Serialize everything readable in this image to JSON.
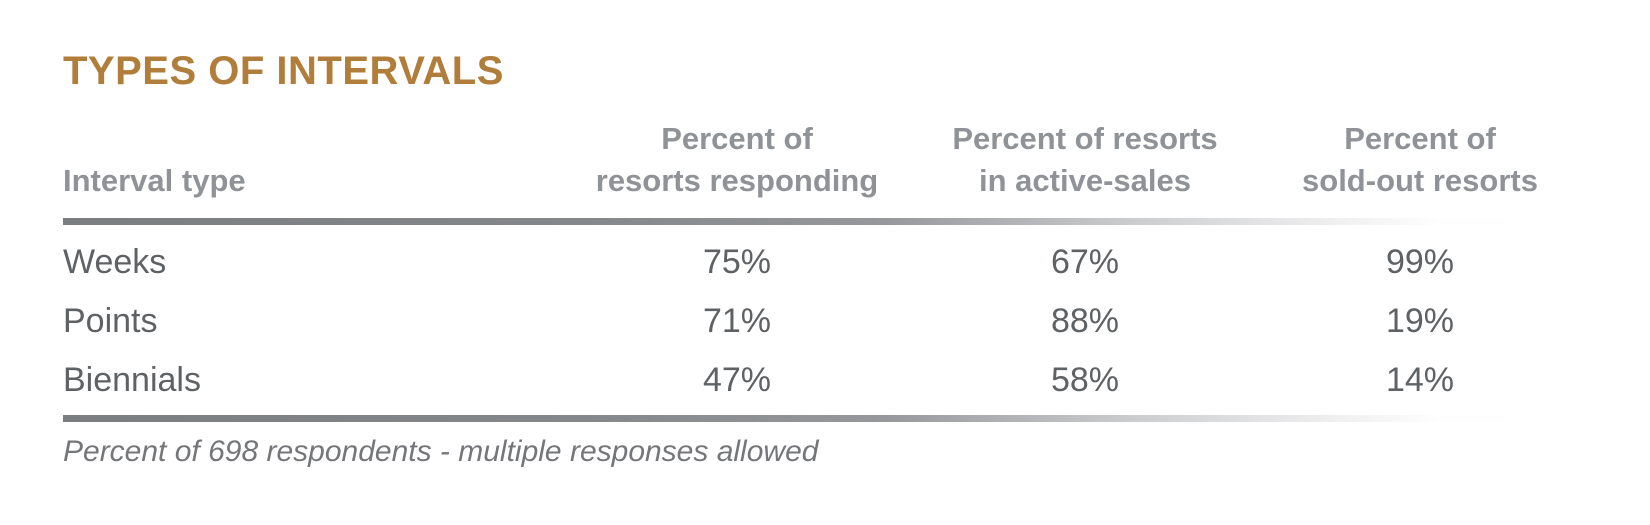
{
  "title": "TYPES OF INTERVALS",
  "table": {
    "columns": [
      {
        "label": "Interval type"
      },
      {
        "line1": "Percent of",
        "line2": "resorts responding"
      },
      {
        "line1": "Percent of resorts",
        "line2": "in active-sales"
      },
      {
        "line1": "Percent of",
        "line2": "sold-out resorts"
      }
    ],
    "rows": [
      {
        "interval_type": "Weeks",
        "responding": "75%",
        "active_sales": "67%",
        "sold_out": "99%"
      },
      {
        "interval_type": "Points",
        "responding": "71%",
        "active_sales": "88%",
        "sold_out": "19%"
      },
      {
        "interval_type": "Biennials",
        "responding": "47%",
        "active_sales": "58%",
        "sold_out": "14%"
      }
    ]
  },
  "footnote": "Percent of 698 respondents - multiple responses allowed",
  "colors": {
    "title_brown": "#B17D3B",
    "header_gray": "#8F9296",
    "body_gray": "#5F6265",
    "footnote_gray": "#747679",
    "divider_gray_start": "#7B7E81",
    "background": "#FFFFFF"
  },
  "chart_data": {
    "type": "table",
    "title": "TYPES OF INTERVALS",
    "columns": [
      "Interval type",
      "Percent of resorts responding",
      "Percent of resorts in active-sales",
      "Percent of sold-out resorts"
    ],
    "categories": [
      "Weeks",
      "Points",
      "Biennials"
    ],
    "series": [
      {
        "name": "Percent of resorts responding",
        "values": [
          75,
          71,
          47
        ]
      },
      {
        "name": "Percent of resorts in active-sales",
        "values": [
          67,
          88,
          58
        ]
      },
      {
        "name": "Percent of sold-out resorts",
        "values": [
          99,
          19,
          14
        ]
      }
    ],
    "rows": [
      [
        "Weeks",
        "75%",
        "67%",
        "99%"
      ],
      [
        "Points",
        "71%",
        "88%",
        "19%"
      ],
      [
        "Biennials",
        "47%",
        "58%",
        "14%"
      ]
    ],
    "note": "Percent of 698 respondents - multiple responses allowed",
    "value_unit": "percent"
  }
}
